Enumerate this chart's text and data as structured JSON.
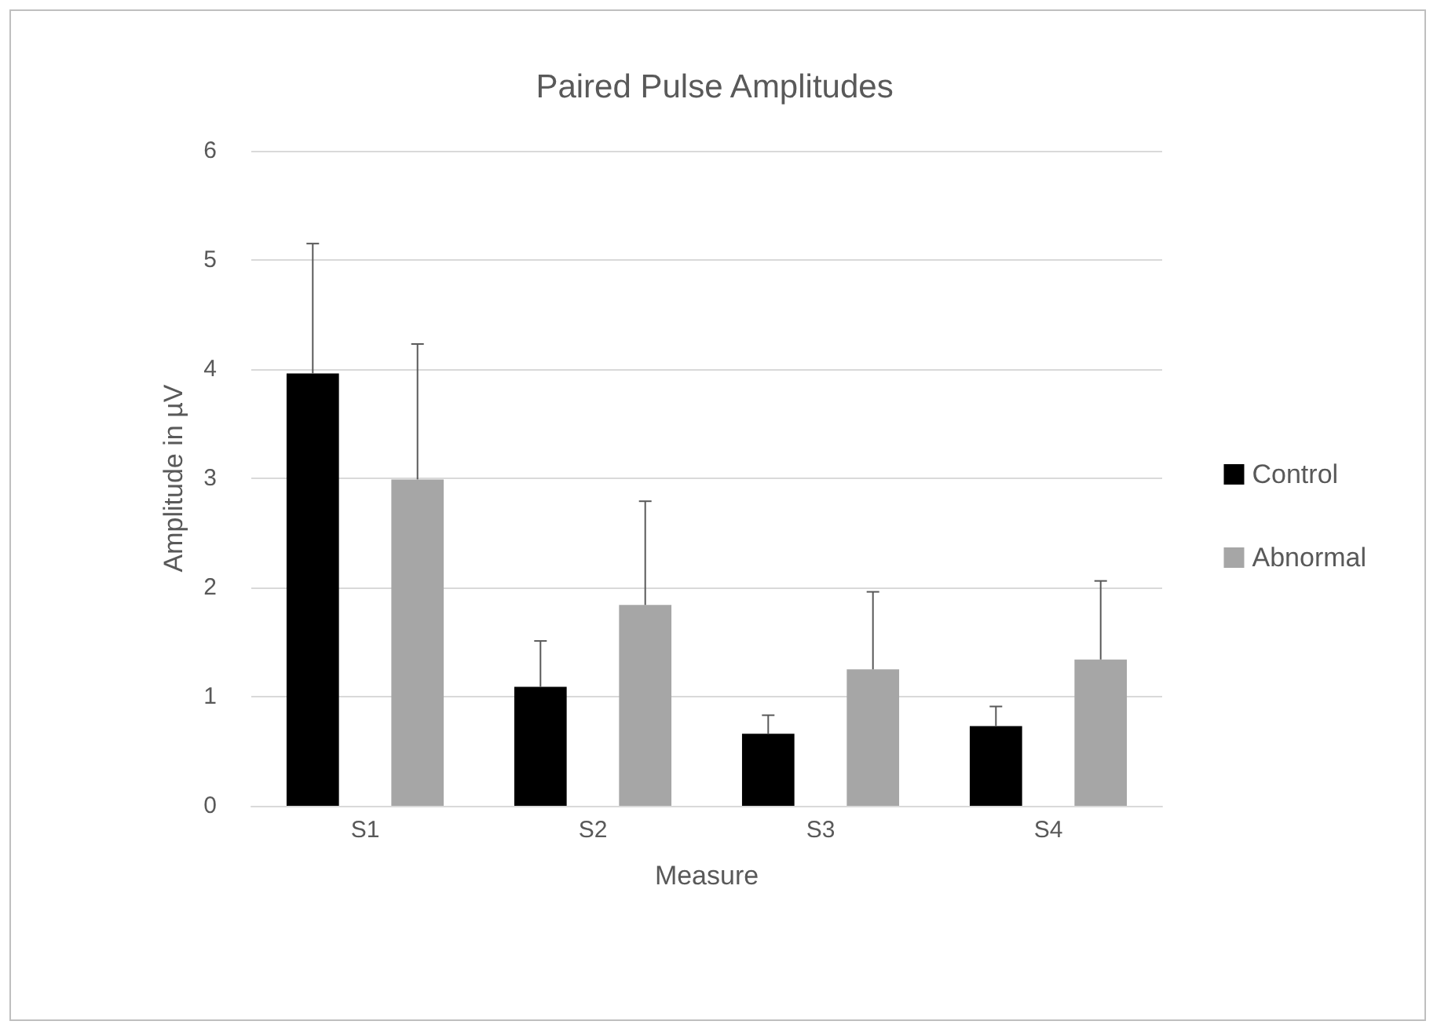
{
  "chart_data": {
    "type": "bar",
    "title": "Paired Pulse Amplitudes",
    "xlabel": "Measure",
    "ylabel": "Amplitude in µV",
    "categories": [
      "S1",
      "S2",
      "S3",
      "S4"
    ],
    "series": [
      {
        "name": "Control",
        "color": "#000000",
        "values": [
          3.96,
          1.09,
          0.66,
          0.73
        ],
        "errors": [
          [
            3.96,
            5.15
          ],
          [
            1.09,
            1.51
          ],
          [
            0.66,
            0.83
          ],
          [
            0.73,
            0.91
          ]
        ]
      },
      {
        "name": "Abnormal",
        "color": "#a6a6a6",
        "values": [
          2.99,
          1.84,
          1.25,
          1.34
        ],
        "errors": [
          [
            2.99,
            4.23
          ],
          [
            1.84,
            2.79
          ],
          [
            1.25,
            1.96
          ],
          [
            1.34,
            2.06
          ]
        ]
      }
    ],
    "ylim": [
      0,
      6
    ],
    "yticks": [
      0,
      1,
      2,
      3,
      4,
      5,
      6
    ],
    "grid": "y",
    "legend": "right"
  }
}
